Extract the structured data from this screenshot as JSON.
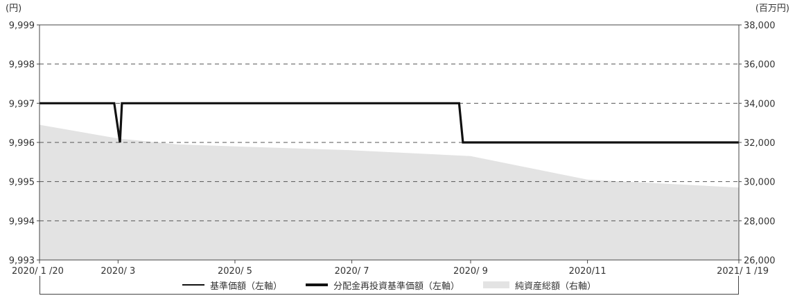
{
  "chart_data": {
    "type": "line",
    "left_axis_unit": "(円)",
    "right_axis_unit": "(百万円)",
    "left_axis": {
      "range": [
        9993,
        9999
      ],
      "ticks": [
        "9,993",
        "9,994",
        "9,995",
        "9,996",
        "9,997",
        "9,998",
        "9,999"
      ]
    },
    "right_axis": {
      "range": [
        26000,
        38000
      ],
      "ticks": [
        "26,000",
        "28,000",
        "30,000",
        "32,000",
        "34,000",
        "36,000",
        "38,000"
      ]
    },
    "x_axis": {
      "range": [
        "2020-01-20",
        "2021-01-19"
      ],
      "ticks": [
        {
          "date": "2020-01-20",
          "label": "2020/ 1 /20"
        },
        {
          "date": "2020-03-01",
          "label": "2020/ 3"
        },
        {
          "date": "2020-05-01",
          "label": "2020/ 5"
        },
        {
          "date": "2020-07-01",
          "label": "2020/ 7"
        },
        {
          "date": "2020-09-01",
          "label": "2020/ 9"
        },
        {
          "date": "2020-11-01",
          "label": "2020/11"
        },
        {
          "date": "2021-01-19",
          "label": "2021/ 1 /19"
        }
      ]
    },
    "gridlines": "dashed",
    "series": [
      {
        "name": "基準価額（左軸）",
        "axis": "left",
        "style": "thin-line",
        "points": [
          [
            "2020-01-20",
            9997
          ],
          [
            "2020-02-28",
            9997
          ],
          [
            "2020-03-02",
            9996
          ],
          [
            "2020-03-03",
            9997
          ],
          [
            "2020-08-26",
            9997
          ],
          [
            "2020-08-28",
            9996
          ],
          [
            "2021-01-19",
            9996
          ]
        ]
      },
      {
        "name": "分配金再投資基準価額（左軸）",
        "axis": "left",
        "style": "thick-line",
        "points": [
          [
            "2020-01-20",
            9997
          ],
          [
            "2020-02-28",
            9997
          ],
          [
            "2020-03-02",
            9996
          ],
          [
            "2020-03-03",
            9997
          ],
          [
            "2020-08-26",
            9997
          ],
          [
            "2020-08-28",
            9996
          ],
          [
            "2021-01-19",
            9996
          ]
        ]
      },
      {
        "name": "純資産総額（右軸）",
        "axis": "right",
        "style": "area",
        "color": "#e3e3e3",
        "points": [
          [
            "2020-01-20",
            32900
          ],
          [
            "2020-03-01",
            32200
          ],
          [
            "2020-04-01",
            31900
          ],
          [
            "2020-05-01",
            31800
          ],
          [
            "2020-07-01",
            31600
          ],
          [
            "2020-09-01",
            31300
          ],
          [
            "2020-11-01",
            30100
          ],
          [
            "2021-01-19",
            29700
          ]
        ]
      }
    ]
  }
}
